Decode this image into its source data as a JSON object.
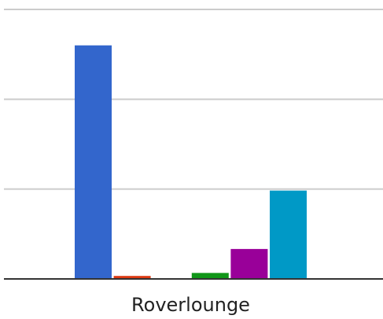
{
  "chart_data": {
    "type": "bar",
    "categories": [
      "Roverlounge"
    ],
    "series": [
      {
        "color": "#3366cc",
        "values": [
          78
        ]
      },
      {
        "color": "#dc3912",
        "values": [
          1
        ]
      },
      {
        "color": "#ff9900",
        "values": [
          0
        ]
      },
      {
        "color": "#109618",
        "values": [
          2
        ]
      },
      {
        "color": "#990099",
        "values": [
          10
        ]
      },
      {
        "color": "#0099c6",
        "values": [
          29.5
        ]
      }
    ],
    "ylim": [
      0,
      90
    ],
    "gridlines": [
      30,
      60,
      90
    ],
    "grid": true,
    "legend": "none",
    "title": "",
    "xlabel": "",
    "ylabel": ""
  }
}
